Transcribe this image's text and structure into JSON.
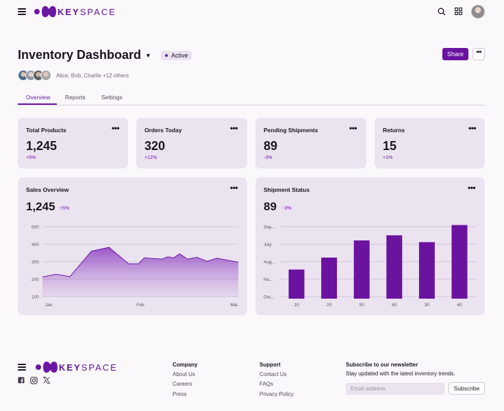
{
  "brand": {
    "name_bold": "KEY",
    "name_light": "SPACE"
  },
  "colors": {
    "accent": "#6b17a3",
    "card_bg": "#ece3f1",
    "page_bg": "#fbf8fc"
  },
  "header": {
    "icons": [
      "menu-icon",
      "search-icon",
      "apps-grid-icon",
      "user-avatar"
    ]
  },
  "page": {
    "title": "Inventory Dashboard",
    "status": "Active",
    "share_label": "Share",
    "more_label": "•••",
    "collaborators": "Alice, Bob, Charlie +12 others"
  },
  "tabs": [
    {
      "label": "Overview",
      "active": true
    },
    {
      "label": "Reports",
      "active": false
    },
    {
      "label": "Settings",
      "active": false
    }
  ],
  "stats": [
    {
      "title": "Total Products",
      "value": "1,245",
      "delta": "+5%"
    },
    {
      "title": "Orders Today",
      "value": "320",
      "delta": "+12%"
    },
    {
      "title": "Pending Shipments",
      "value": "89",
      "delta": "-3%"
    },
    {
      "title": "Returns",
      "value": "15",
      "delta": "+1%"
    }
  ],
  "card_menu_label": "•••",
  "chart_data": [
    {
      "type": "area",
      "title": "Sales Overview",
      "headline_value": "1,245",
      "headline_delta": "+5%",
      "y_ticks": [
        "500",
        "400",
        "300",
        "200",
        "100"
      ],
      "x_ticks": [
        "Jan",
        "Feb",
        "Mar"
      ],
      "ylim": [
        100,
        500
      ],
      "x": [
        0,
        0.07,
        0.14,
        0.25,
        0.34,
        0.44,
        0.49,
        0.52,
        0.61,
        0.64,
        0.67,
        0.7,
        0.74,
        0.79,
        0.84,
        0.89,
        1.0
      ],
      "values": [
        212,
        228,
        214,
        360,
        382,
        288,
        288,
        322,
        315,
        328,
        322,
        345,
        315,
        325,
        302,
        320,
        297
      ]
    },
    {
      "type": "bar",
      "title": "Shipment Status",
      "headline_value": "89",
      "headline_delta": "-3%",
      "categories": [
        "10",
        "20",
        "50",
        "60",
        "30",
        "40"
      ],
      "y_ticks": [
        "Sep...",
        "July",
        "Aug...",
        "No...",
        "Oct..."
      ],
      "values": [
        34,
        48,
        68,
        74,
        66,
        86
      ],
      "ylim": [
        0,
        100
      ]
    }
  ],
  "footer": {
    "social": [
      "facebook-icon",
      "instagram-icon",
      "x-icon"
    ],
    "company": {
      "title": "Company",
      "links": [
        "About Us",
        "Careers",
        "Press"
      ]
    },
    "support": {
      "title": "Support",
      "links": [
        "Contact Us",
        "FAQs",
        "Privacy Policy"
      ]
    },
    "newsletter": {
      "title": "Subscribe to our newsletter",
      "subtitle": "Stay updated with the latest inventory trends.",
      "placeholder": "Email address",
      "button_label": "Subscribe"
    }
  }
}
